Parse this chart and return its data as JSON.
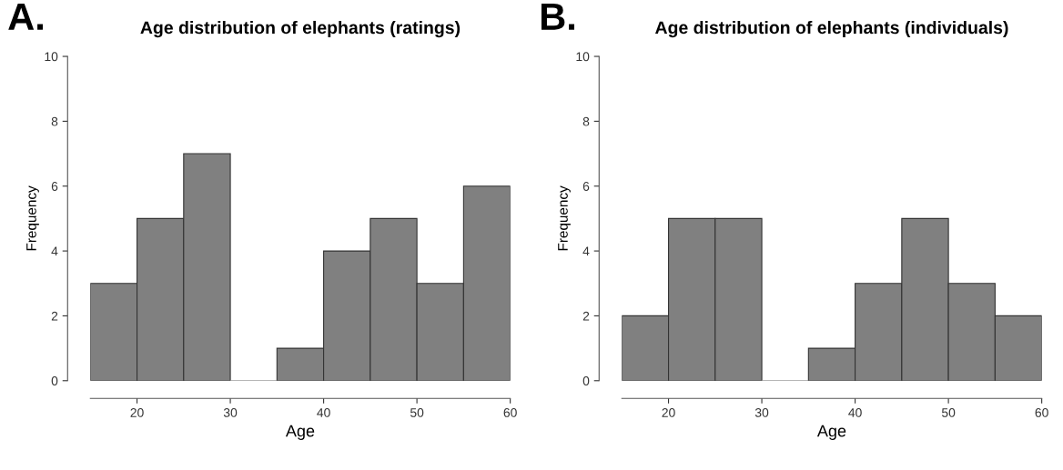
{
  "chart_data": [
    {
      "type": "histogram",
      "title": "Age distribution of elephants (ratings)",
      "annotations": [
        "A."
      ],
      "xlabel": "Age",
      "ylabel": "Frequency",
      "bins": [
        15,
        20,
        25,
        30,
        35,
        40,
        45,
        50,
        55,
        60
      ],
      "values": [
        3,
        5,
        7,
        0,
        1,
        4,
        5,
        3,
        6
      ],
      "color": "#808080",
      "xlim": [
        15,
        60
      ],
      "xticks": [
        20,
        30,
        40,
        50,
        60
      ],
      "ylim": [
        0,
        10
      ],
      "yticks": [
        0,
        2,
        4,
        6,
        8,
        10
      ],
      "grid": false,
      "legend": false
    },
    {
      "type": "histogram",
      "title": "Age distribution of elephants (individuals)",
      "annotations": [
        "B."
      ],
      "xlabel": "Age",
      "ylabel": "Frequency",
      "bins": [
        15,
        20,
        25,
        30,
        35,
        40,
        45,
        50,
        55,
        60
      ],
      "values": [
        2,
        5,
        5,
        0,
        1,
        3,
        5,
        3,
        2
      ],
      "color": "#808080",
      "xlim": [
        15,
        60
      ],
      "xticks": [
        20,
        30,
        40,
        50,
        60
      ],
      "ylim": [
        0,
        10
      ],
      "yticks": [
        0,
        2,
        4,
        6,
        8,
        10
      ],
      "grid": false,
      "legend": false
    }
  ]
}
